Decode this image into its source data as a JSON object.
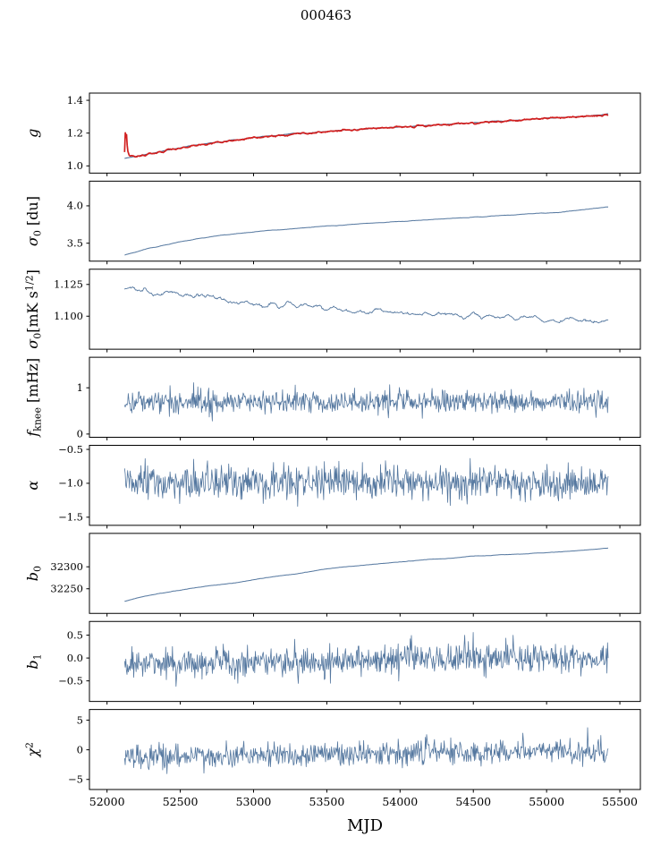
{
  "chart_data": {
    "type": "line",
    "title": "000463",
    "xlabel": "MJD",
    "xlim": [
      51880,
      55640
    ],
    "x_range": [
      52120,
      55420
    ],
    "xticks": [
      {
        "v": 52000,
        "label": "52000"
      },
      {
        "v": 52500,
        "label": "52500"
      },
      {
        "v": 53000,
        "label": "53000"
      },
      {
        "v": 53500,
        "label": "53500"
      },
      {
        "v": 54000,
        "label": "54000"
      },
      {
        "v": 54500,
        "label": "54500"
      },
      {
        "v": 55000,
        "label": "55000"
      },
      {
        "v": 55500,
        "label": "55500"
      }
    ],
    "colors": {
      "blue": "#54779f",
      "dark_blue": "#46648c",
      "red": "#d11f1f"
    },
    "panels": [
      {
        "name": "g",
        "ylabel": [
          {
            "t": "g",
            "style": "italic"
          }
        ],
        "ylim": [
          0.956,
          1.444
        ],
        "yticks": [
          {
            "v": 1.0,
            "label": "1.0"
          },
          {
            "v": 1.2,
            "label": "1.2"
          },
          {
            "v": 1.4,
            "label": "1.4"
          }
        ],
        "series": [
          {
            "name": "g-fit",
            "color": "#46648c",
            "width": 1.0,
            "noise": 0.002,
            "smooth": 4,
            "n": 520,
            "seed": 11,
            "trend": [
              [
                52120,
                1.05
              ],
              [
                52200,
                1.058
              ],
              [
                52350,
                1.085
              ],
              [
                52500,
                1.112
              ],
              [
                52650,
                1.132
              ],
              [
                52800,
                1.15
              ],
              [
                52950,
                1.167
              ],
              [
                53100,
                1.181
              ],
              [
                53250,
                1.193
              ],
              [
                53400,
                1.203
              ],
              [
                53550,
                1.213
              ],
              [
                53700,
                1.222
              ],
              [
                53850,
                1.23
              ],
              [
                54000,
                1.238
              ],
              [
                54200,
                1.248
              ],
              [
                54400,
                1.258
              ],
              [
                54600,
                1.268
              ],
              [
                54800,
                1.278
              ],
              [
                55000,
                1.29
              ],
              [
                55200,
                1.301
              ],
              [
                55420,
                1.313
              ]
            ]
          },
          {
            "name": "g-raw",
            "color": "#d11f1f",
            "width": 1.7,
            "noise": 0.0045,
            "smooth": 2,
            "n": 740,
            "seed": 12,
            "trend": [
              [
                52120,
                1.075
              ],
              [
                52124,
                1.2
              ],
              [
                52128,
                1.165
              ],
              [
                52133,
                1.19
              ],
              [
                52140,
                1.095
              ],
              [
                52152,
                1.062
              ],
              [
                52200,
                1.056
              ],
              [
                52350,
                1.083
              ],
              [
                52500,
                1.11
              ],
              [
                52650,
                1.13
              ],
              [
                52800,
                1.148
              ],
              [
                52950,
                1.165
              ],
              [
                53100,
                1.18
              ],
              [
                53250,
                1.192
              ],
              [
                53400,
                1.202
              ],
              [
                53550,
                1.212
              ],
              [
                53700,
                1.221
              ],
              [
                53850,
                1.229
              ],
              [
                54000,
                1.237
              ],
              [
                54200,
                1.247
              ],
              [
                54400,
                1.257
              ],
              [
                54600,
                1.267
              ],
              [
                54800,
                1.277
              ],
              [
                55000,
                1.289
              ],
              [
                55200,
                1.3
              ],
              [
                55420,
                1.309
              ]
            ]
          }
        ]
      },
      {
        "name": "sigma0-du",
        "ylabel": [
          {
            "t": "σ",
            "style": "italic"
          },
          {
            "t": "0",
            "style": "sub"
          },
          {
            "t": " [du]",
            "style": "normal"
          }
        ],
        "ylim": [
          3.26,
          4.33
        ],
        "yticks": [
          {
            "v": 3.5,
            "label": "3.5"
          },
          {
            "v": 4.0,
            "label": "4.0"
          }
        ],
        "series": [
          {
            "name": "sigma0-du",
            "color": "#54779f",
            "width": 1.0,
            "noise": 0.003,
            "smooth": 5,
            "n": 600,
            "seed": 21,
            "trend": [
              [
                52120,
                3.345
              ],
              [
                52300,
                3.435
              ],
              [
                52500,
                3.52
              ],
              [
                52700,
                3.585
              ],
              [
                52900,
                3.632
              ],
              [
                53100,
                3.668
              ],
              [
                53300,
                3.7
              ],
              [
                53500,
                3.73
              ],
              [
                53700,
                3.756
              ],
              [
                53900,
                3.78
              ],
              [
                54100,
                3.802
              ],
              [
                54300,
                3.825
              ],
              [
                54500,
                3.848
              ],
              [
                54700,
                3.87
              ],
              [
                54900,
                3.893
              ],
              [
                55100,
                3.918
              ],
              [
                55250,
                3.948
              ],
              [
                55420,
                3.988
              ]
            ]
          }
        ]
      },
      {
        "name": "sigma0-mk",
        "ylabel": [
          {
            "t": "σ",
            "style": "italic"
          },
          {
            "t": "0",
            "style": "sub"
          },
          {
            "t": "[mK s",
            "style": "normal"
          },
          {
            "t": "1/2",
            "style": "sup"
          },
          {
            "t": "]",
            "style": "normal"
          }
        ],
        "ylim": [
          1.074,
          1.137
        ],
        "yticks": [
          {
            "v": 1.1,
            "label": "1.100"
          },
          {
            "v": 1.125,
            "label": "1.125"
          }
        ],
        "series": [
          {
            "name": "sigma0-mk",
            "color": "#54779f",
            "width": 0.9,
            "noise": 0.0018,
            "smooth": 6,
            "n": 760,
            "seed": 31,
            "trend": [
              [
                52120,
                1.1205
              ],
              [
                52170,
                1.1222
              ],
              [
                52300,
                1.119
              ],
              [
                52450,
                1.118
              ],
              [
                52600,
                1.1165
              ],
              [
                52750,
                1.114
              ],
              [
                52900,
                1.1105
              ],
              [
                53000,
                1.1085
              ],
              [
                53120,
                1.11
              ],
              [
                53300,
                1.108
              ],
              [
                53450,
                1.1068
              ],
              [
                53600,
                1.106
              ],
              [
                53750,
                1.1042
              ],
              [
                53900,
                1.1046
              ],
              [
                54050,
                1.103
              ],
              [
                54200,
                1.102
              ],
              [
                54350,
                1.1012
              ],
              [
                54500,
                1.1
              ],
              [
                54650,
                1.0996
              ],
              [
                54800,
                1.0992
              ],
              [
                54950,
                1.0988
              ],
              [
                55100,
                1.0976
              ],
              [
                55250,
                1.0952
              ],
              [
                55350,
                1.0968
              ],
              [
                55420,
                1.0985
              ]
            ]
          }
        ]
      },
      {
        "name": "fknee",
        "ylabel": [
          {
            "t": "f",
            "style": "italic"
          },
          {
            "t": "knee",
            "style": "sub"
          },
          {
            "t": " [mHz]",
            "style": "normal"
          }
        ],
        "ylim": [
          -0.07,
          1.66
        ],
        "yticks": [
          {
            "v": 0,
            "label": "0"
          },
          {
            "v": 1,
            "label": "1"
          }
        ],
        "series": [
          {
            "name": "fknee",
            "color": "#54779f",
            "width": 0.8,
            "noise": 0.125,
            "smooth": 1,
            "n": 800,
            "seed": 41,
            "trend": [
              [
                52120,
                0.7
              ],
              [
                55420,
                0.7
              ]
            ]
          }
        ]
      },
      {
        "name": "alpha",
        "ylabel": [
          {
            "t": "α",
            "style": "italic"
          }
        ],
        "ylim": [
          -1.62,
          -0.44
        ],
        "yticks": [
          {
            "v": -1.5,
            "label": "−1.5"
          },
          {
            "v": -1.0,
            "label": "−1.0"
          },
          {
            "v": -0.5,
            "label": "−0.5"
          }
        ],
        "series": [
          {
            "name": "alpha",
            "color": "#54779f",
            "width": 0.8,
            "noise": 0.125,
            "smooth": 1,
            "n": 800,
            "seed": 51,
            "trend": [
              [
                52120,
                -1.0
              ],
              [
                55420,
                -1.0
              ]
            ]
          }
        ]
      },
      {
        "name": "b0",
        "ylabel": [
          {
            "t": "b",
            "style": "italic"
          },
          {
            "t": "0",
            "style": "sub"
          }
        ],
        "ylim": [
          32194,
          32376
        ],
        "yticks": [
          {
            "v": 32250,
            "label": "32250"
          },
          {
            "v": 32300,
            "label": "32300"
          }
        ],
        "series": [
          {
            "name": "b0",
            "color": "#54779f",
            "width": 1.0,
            "noise": 0.5,
            "smooth": 6,
            "n": 600,
            "seed": 61,
            "trend": [
              [
                52120,
                32222
              ],
              [
                52300,
                32236
              ],
              [
                52500,
                32247
              ],
              [
                52700,
                32257
              ],
              [
                52900,
                32265
              ],
              [
                53000,
                32270
              ],
              [
                53100,
                32276
              ],
              [
                53300,
                32284
              ],
              [
                53500,
                32295
              ],
              [
                53700,
                32302
              ],
              [
                53900,
                32308
              ],
              [
                54100,
                32314
              ],
              [
                54300,
                32319
              ],
              [
                54500,
                32324
              ],
              [
                54700,
                32327
              ],
              [
                54900,
                32330
              ],
              [
                55100,
                32334
              ],
              [
                55250,
                32338
              ],
              [
                55420,
                32342
              ]
            ]
          }
        ]
      },
      {
        "name": "b1",
        "ylabel": [
          {
            "t": "b",
            "style": "italic"
          },
          {
            "t": "1",
            "style": "sub"
          }
        ],
        "ylim": [
          -0.95,
          0.8
        ],
        "yticks": [
          {
            "v": -0.5,
            "label": "−0.5"
          },
          {
            "v": 0.0,
            "label": "0.0"
          },
          {
            "v": 0.5,
            "label": "0.5"
          }
        ],
        "series": [
          {
            "name": "b1",
            "color": "#54779f",
            "width": 0.8,
            "noise": 0.165,
            "smooth": 1,
            "n": 800,
            "seed": 71,
            "trend": [
              [
                52120,
                -0.13
              ],
              [
                52600,
                -0.12
              ],
              [
                53000,
                -0.09
              ],
              [
                53600,
                -0.05
              ],
              [
                54000,
                -0.02
              ],
              [
                54500,
                0.0
              ],
              [
                55000,
                0.0
              ],
              [
                55420,
                0.01
              ]
            ]
          }
        ]
      },
      {
        "name": "chi2",
        "ylabel": [
          {
            "t": "χ",
            "style": "italic"
          },
          {
            "t": "2",
            "style": "sup"
          }
        ],
        "ylim": [
          -6.7,
          6.8
        ],
        "yticks": [
          {
            "v": -5,
            "label": "−5"
          },
          {
            "v": 0,
            "label": "0"
          },
          {
            "v": 5,
            "label": "5"
          }
        ],
        "series": [
          {
            "name": "chi2",
            "color": "#54779f",
            "width": 0.8,
            "noise": 1.0,
            "smooth": 1,
            "n": 800,
            "seed": 81,
            "trend": [
              [
                52120,
                -1.2
              ],
              [
                53000,
                -0.9
              ],
              [
                53800,
                -0.5
              ],
              [
                54500,
                -0.35
              ],
              [
                55420,
                -0.2
              ]
            ]
          }
        ]
      }
    ]
  }
}
